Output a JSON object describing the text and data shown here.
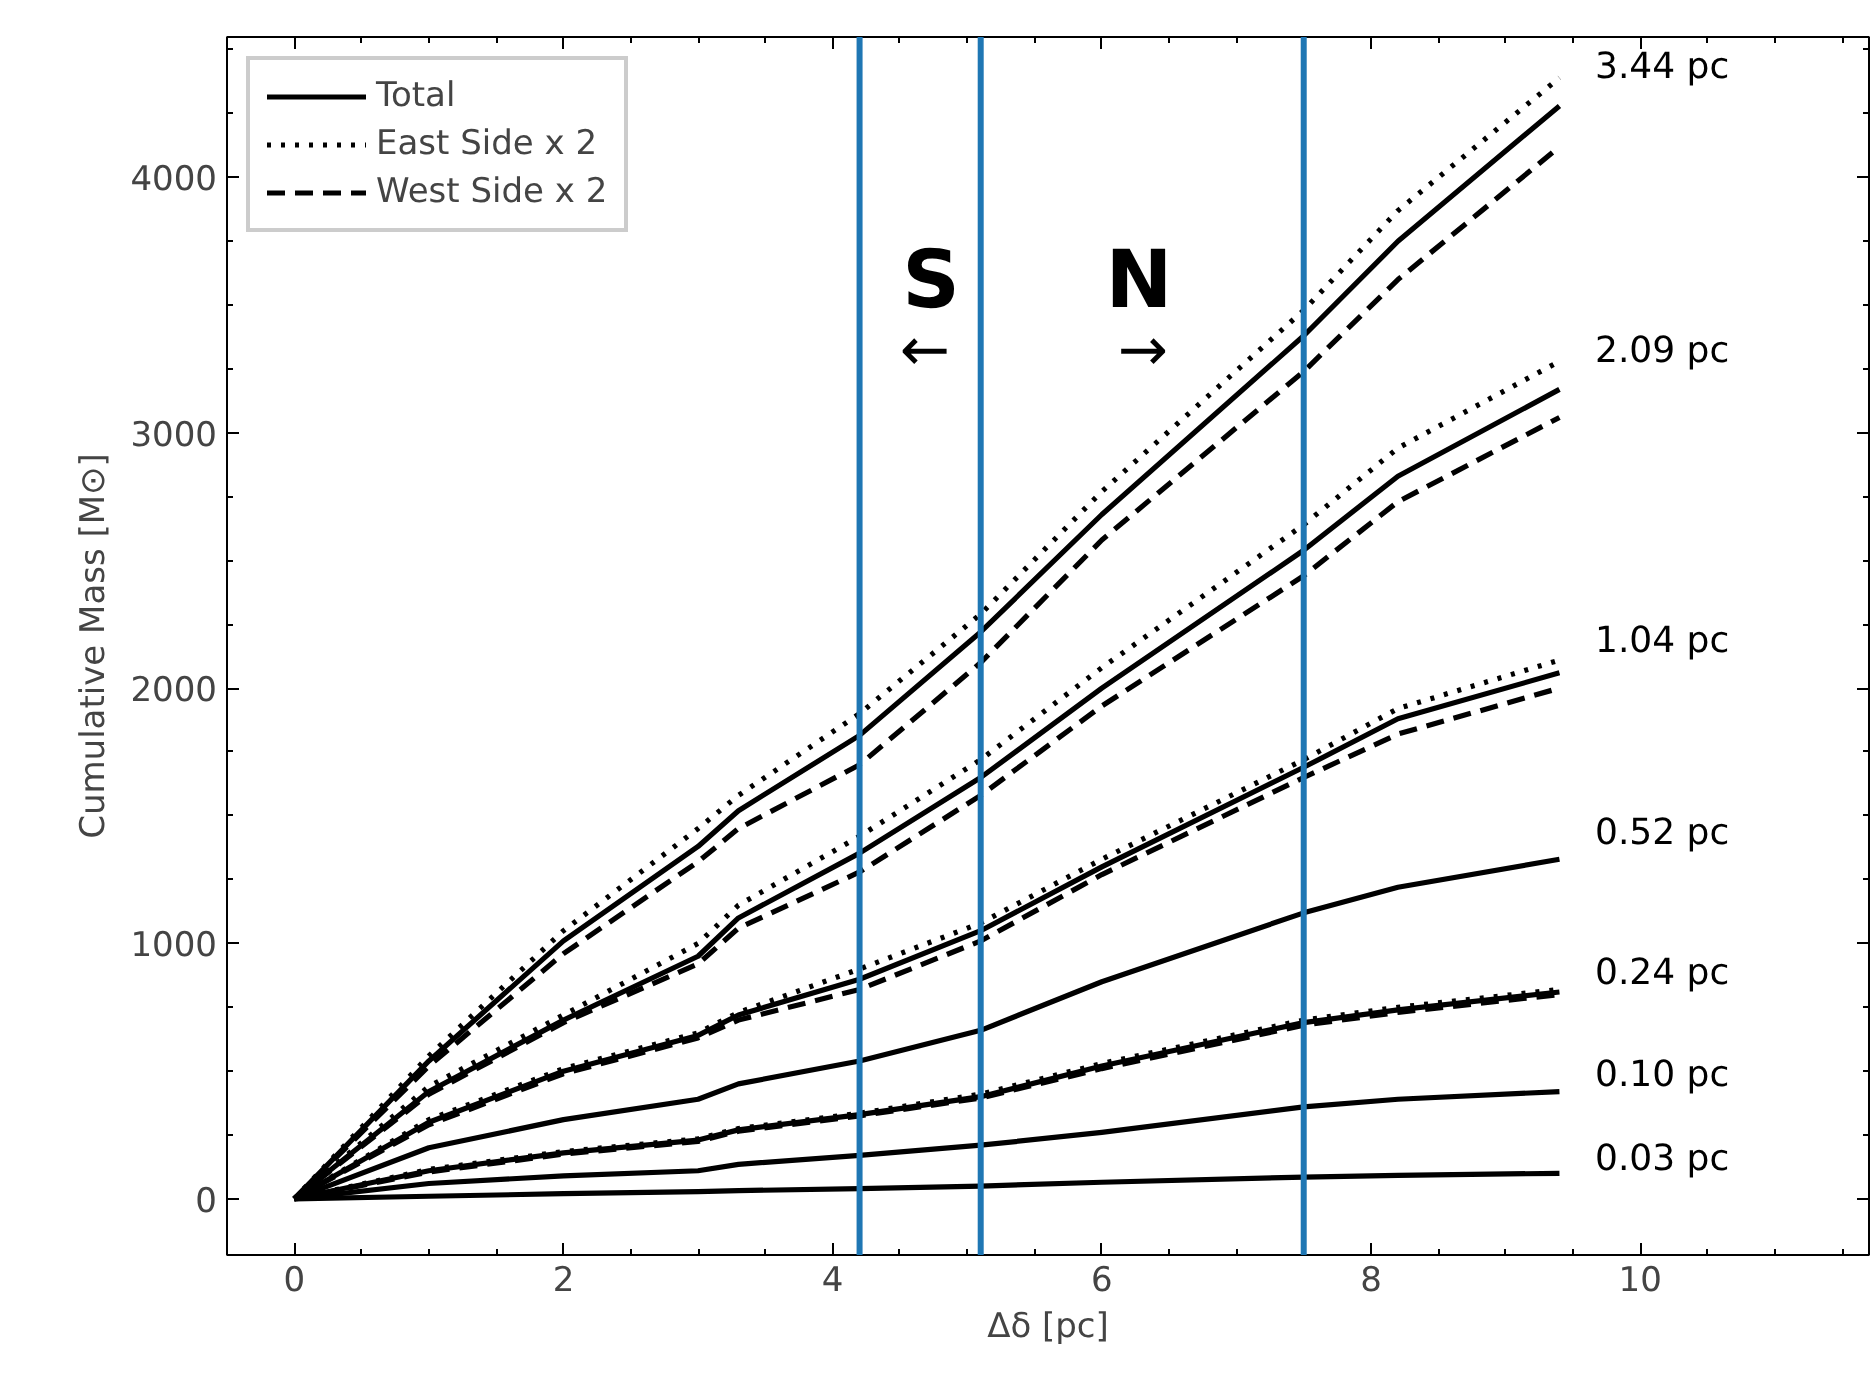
{
  "chart_data": {
    "type": "line",
    "xlabel": "Δδ [pc]",
    "ylabel": "Cumulative Mass [M⊙]",
    "xlim": [
      -0.5,
      11.7
    ],
    "ylim": [
      -220,
      4550
    ],
    "xticks": [
      0,
      2,
      4,
      6,
      8,
      10
    ],
    "yticks": [
      0,
      1000,
      2000,
      3000,
      4000
    ],
    "grid": false,
    "legend": "top left",
    "marker": "none",
    "x": [
      0,
      1,
      2,
      3,
      3.3,
      4.2,
      5.1,
      6,
      7.5,
      8.2,
      9.4
    ],
    "series": [
      {
        "name": "Total",
        "color": "#000000",
        "line_style": "solid",
        "values": [
          0,
          540,
          1010,
          1380,
          1520,
          1815,
          2220,
          2680,
          3380,
          3750,
          4280
        ]
      },
      {
        "name": "East Side x 2",
        "color": "#000000",
        "line_style": "dotted",
        "values": [
          0,
          560,
          1050,
          1450,
          1580,
          1900,
          2290,
          2770,
          3480,
          3870,
          4390
        ]
      },
      {
        "name": "West Side x 2",
        "color": "#000000",
        "line_style": "dashed",
        "values": [
          0,
          520,
          960,
          1320,
          1450,
          1700,
          2100,
          2580,
          3240,
          3600,
          4120
        ]
      },
      {
        "color": "#000000",
        "line_style": "solid",
        "values": [
          0,
          420,
          700,
          950,
          1100,
          1354,
          1650,
          2000,
          2540,
          2830,
          3170
        ]
      },
      {
        "color": "#000000",
        "line_style": "dotted",
        "values": [
          0,
          440,
          720,
          1000,
          1150,
          1420,
          1720,
          2080,
          2640,
          2940,
          3280
        ]
      },
      {
        "color": "#000000",
        "line_style": "dashed",
        "values": [
          0,
          410,
          690,
          920,
          1060,
          1280,
          1580,
          1930,
          2440,
          2730,
          3060
        ]
      },
      {
        "color": "#000000",
        "line_style": "solid",
        "values": [
          0,
          300,
          500,
          640,
          720,
          860,
          1050,
          1300,
          1690,
          1880,
          2060
        ]
      },
      {
        "color": "#000000",
        "line_style": "dotted",
        "values": [
          0,
          310,
          510,
          650,
          730,
          900,
          1080,
          1330,
          1720,
          1920,
          2110
        ]
      },
      {
        "color": "#000000",
        "line_style": "dashed",
        "values": [
          0,
          290,
          490,
          630,
          700,
          820,
          1010,
          1270,
          1650,
          1820,
          2000
        ]
      },
      {
        "color": "#000000",
        "line_style": "solid",
        "values": [
          0,
          200,
          310,
          390,
          450,
          540,
          660,
          850,
          1120,
          1220,
          1330
        ]
      },
      {
        "color": "#000000",
        "line_style": "solid",
        "values": [
          0,
          110,
          180,
          230,
          270,
          330,
          400,
          520,
          690,
          740,
          810
        ]
      },
      {
        "color": "#000000",
        "line_style": "dotted",
        "values": [
          0,
          115,
          185,
          235,
          275,
          335,
          410,
          530,
          700,
          750,
          820
        ]
      },
      {
        "color": "#000000",
        "line_style": "dashed",
        "values": [
          0,
          105,
          175,
          225,
          265,
          325,
          395,
          510,
          680,
          730,
          800
        ]
      },
      {
        "color": "#000000",
        "line_style": "solid",
        "values": [
          0,
          60,
          90,
          110,
          135,
          170,
          210,
          260,
          360,
          390,
          420
        ]
      },
      {
        "color": "#000000",
        "line_style": "solid",
        "values": [
          0,
          10,
          20,
          28,
          32,
          40,
          50,
          65,
          85,
          92,
          100
        ]
      }
    ],
    "ref_lines": [
      {
        "axis": "x",
        "value": 4.2,
        "color": "#1f77b4"
      },
      {
        "axis": "x",
        "value": 5.1,
        "color": "#1f77b4"
      },
      {
        "axis": "x",
        "value": 7.5,
        "color": "#1f77b4"
      }
    ],
    "annotations": [
      "3.44 pc",
      "2.09 pc",
      "1.04 pc",
      "0.52 pc",
      "0.24 pc",
      "0.10 pc",
      "0.03 pc",
      "S",
      "←",
      "N",
      "→"
    ]
  }
}
